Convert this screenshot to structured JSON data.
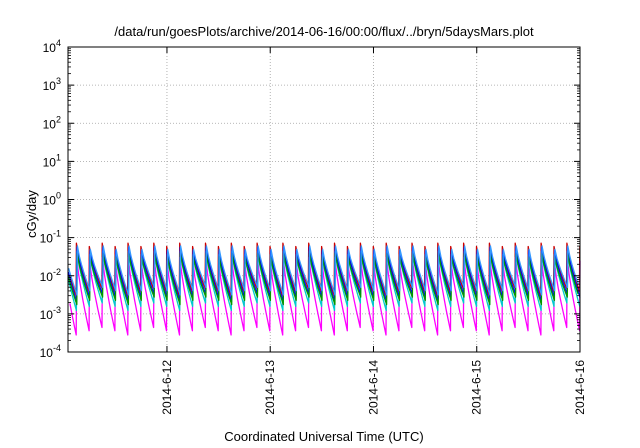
{
  "chart_data": {
    "type": "line",
    "title": "/data/run/goesPlots/archive/2014-06-16/00:00/flux/../bryn/5daysMars.plot",
    "xlabel": "Coordinated Universal Time (UTC)",
    "ylabel": "cGy/day",
    "yscale": "log",
    "ylim": [
      0.0001,
      10000
    ],
    "y_ticks": [
      {
        "base": "10",
        "exp": "-4"
      },
      {
        "base": "10",
        "exp": "-3"
      },
      {
        "base": "10",
        "exp": "-2"
      },
      {
        "base": "10",
        "exp": "-1"
      },
      {
        "base": "10",
        "exp": "0"
      },
      {
        "base": "10",
        "exp": "1"
      },
      {
        "base": "10",
        "exp": "2"
      },
      {
        "base": "10",
        "exp": "3"
      },
      {
        "base": "10",
        "exp": "4"
      }
    ],
    "xlim": [
      "2014-06-11 01:00",
      "2014-06-16 00:00"
    ],
    "x_ticks": [
      "2014-6-12",
      "2014-6-13",
      "2014-6-14",
      "2014-6-15",
      "2014-6-16"
    ],
    "grid": true,
    "legend": "none",
    "pattern": {
      "sawtooth_period_hours": 3,
      "peak_values": [
        0.045,
        0.055,
        0.045,
        0.055
      ],
      "trough_values": [
        0.0035,
        0.0045,
        0.0055,
        0.0045
      ]
    },
    "series": [
      {
        "color": "#cc0000",
        "peak_factor": 1.3,
        "trough_factor": 0.85
      },
      {
        "color": "#ff00ff",
        "peak_factor": 0.55,
        "trough_factor": 0.08
      },
      {
        "color": "#00cccc",
        "peak_factor": 0.8,
        "trough_factor": 0.35
      },
      {
        "color": "#0000ff",
        "peak_factor": 1.0,
        "trough_factor": 0.6
      },
      {
        "color": "#009900",
        "peak_factor": 0.7,
        "trough_factor": 0.5
      },
      {
        "color": "#3399ff",
        "peak_factor": 1.1,
        "trough_factor": 0.9
      }
    ]
  }
}
